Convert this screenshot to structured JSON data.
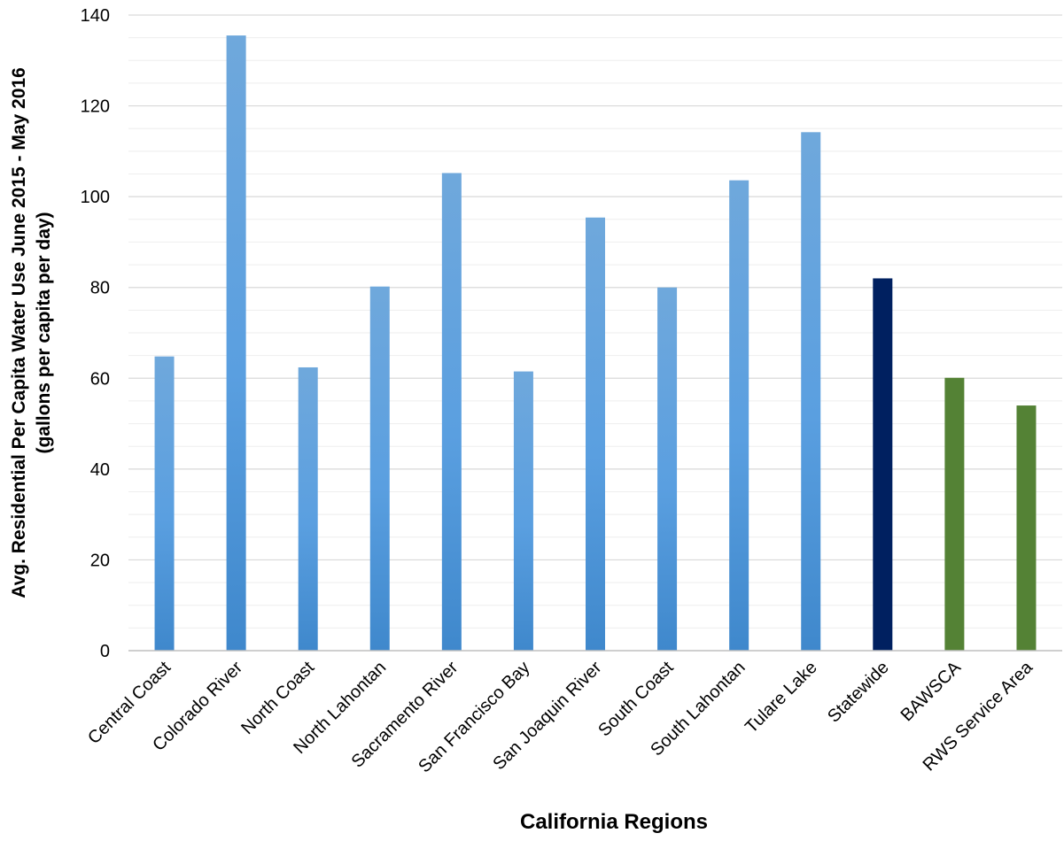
{
  "chart_data": {
    "type": "bar",
    "title": "",
    "xlabel": "California Regions",
    "ylabel_lines": [
      "Avg. Residential Per Capita Water Use June 2015 - May 2016",
      "(gallons per capita per day)"
    ],
    "ylim": [
      0,
      140
    ],
    "y_ticks": [
      0,
      20,
      40,
      60,
      80,
      100,
      120,
      140
    ],
    "y_minor_step": 5,
    "grid": true,
    "categories": [
      "Central Coast",
      "Colorado River",
      "North Coast",
      "North Lahontan",
      "Sacramento River",
      "San Francisco Bay",
      "San Joaquin River",
      "South Coast",
      "South Lahontan",
      "Tulare Lake",
      "Statewide",
      "BAWSCA",
      "RWS Service Area"
    ],
    "values": [
      64.8,
      135.5,
      62.4,
      80.2,
      105.2,
      61.5,
      95.4,
      80.0,
      103.6,
      114.2,
      82.0,
      60.1,
      54.0
    ],
    "colors": {
      "region": "#4f94d4",
      "region_light": "#6fa8dc",
      "statewide": "#002060",
      "bawsca_rws": "#548235",
      "grid_major": "#d9d9d9",
      "grid_minor": "#eeeeee",
      "axis": "#bfbfbf"
    },
    "bar_color_keys": [
      "region",
      "region",
      "region",
      "region",
      "region",
      "region",
      "region",
      "region",
      "region",
      "region",
      "statewide",
      "bawsca_rws",
      "bawsca_rws"
    ]
  }
}
